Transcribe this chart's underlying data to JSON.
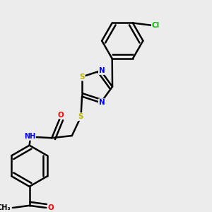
{
  "background_color": "#ececec",
  "bond_color": "#000000",
  "atom_colors": {
    "S": "#b8b800",
    "N": "#0000ff",
    "O": "#ff0000",
    "Cl": "#00bb00",
    "C": "#000000",
    "H": "#555555"
  },
  "figsize": [
    3.0,
    3.0
  ],
  "dpi": 100
}
